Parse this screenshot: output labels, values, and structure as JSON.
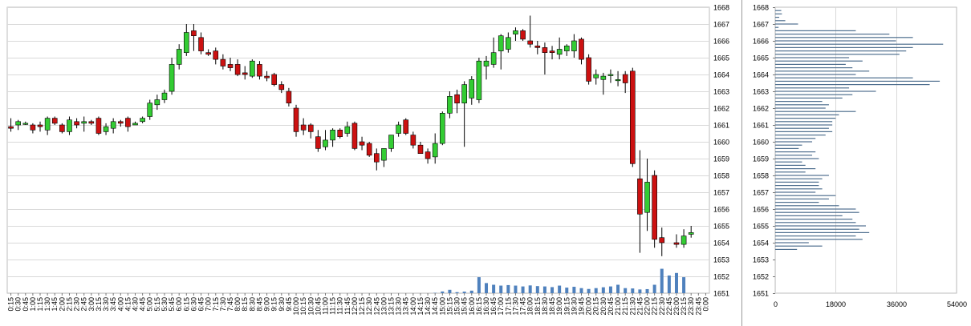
{
  "chart_data": [
    {
      "type": "candlestick",
      "ylim": [
        1651,
        1668
      ],
      "y_ticks": [
        1651,
        1652,
        1653,
        1654,
        1655,
        1656,
        1657,
        1658,
        1659,
        1660,
        1661,
        1662,
        1663,
        1664,
        1665,
        1666,
        1667,
        1668
      ],
      "x_tick_labels": [
        "0:15",
        "0:30",
        "0:45",
        "1:00",
        "1:15",
        "1:30",
        "1:45",
        "2:00",
        "2:15",
        "2:30",
        "2:45",
        "3:00",
        "3:15",
        "3:30",
        "3:45",
        "4:00",
        "4:15",
        "4:30",
        "4:45",
        "5:00",
        "5:15",
        "5:30",
        "5:45",
        "6:00",
        "6:15",
        "6:30",
        "6:45",
        "7:00",
        "7:15",
        "7:30",
        "7:45",
        "8:00",
        "8:15",
        "8:30",
        "8:45",
        "9:00",
        "9:15",
        "9:30",
        "9:45",
        "10:00",
        "10:15",
        "10:30",
        "10:45",
        "11:00",
        "11:15",
        "11:30",
        "11:45",
        "12:00",
        "12:15",
        "12:30",
        "12:45",
        "13:00",
        "13:15",
        "13:30",
        "13:45",
        "14:00",
        "14:15",
        "14:30",
        "14:45",
        "15:00",
        "15:15",
        "15:30",
        "15:45",
        "16:00",
        "16:15",
        "16:30",
        "16:45",
        "17:00",
        "17:15",
        "17:30",
        "17:45",
        "18:00",
        "18:15",
        "18:30",
        "18:45",
        "19:00",
        "19:15",
        "19:30",
        "19:45",
        "20:00",
        "20:15",
        "20:30",
        "20:45",
        "21:00",
        "21:15",
        "21:30",
        "21:45",
        "22:00",
        "22:15",
        "22:30",
        "22:45",
        "23:00",
        "23:15",
        "23:30",
        "23:45",
        "0:00"
      ],
      "candles": [
        {
          "o": 1660.9,
          "h": 1661.4,
          "l": 1660.6,
          "c": 1660.8
        },
        {
          "o": 1661.0,
          "h": 1661.3,
          "l": 1660.7,
          "c": 1661.2
        },
        {
          "o": 1661.1,
          "h": 1661.2,
          "l": 1661.0,
          "c": 1661.1
        },
        {
          "o": 1661.0,
          "h": 1661.1,
          "l": 1660.5,
          "c": 1660.7
        },
        {
          "o": 1661.0,
          "h": 1661.2,
          "l": 1660.6,
          "c": 1660.9
        },
        {
          "o": 1660.7,
          "h": 1661.5,
          "l": 1660.4,
          "c": 1661.4
        },
        {
          "o": 1661.4,
          "h": 1661.5,
          "l": 1661.0,
          "c": 1661.1
        },
        {
          "o": 1661.0,
          "h": 1661.1,
          "l": 1660.5,
          "c": 1660.6
        },
        {
          "o": 1660.6,
          "h": 1661.5,
          "l": 1660.4,
          "c": 1661.3
        },
        {
          "o": 1661.2,
          "h": 1661.4,
          "l": 1660.8,
          "c": 1661.0
        },
        {
          "o": 1661.1,
          "h": 1661.5,
          "l": 1660.6,
          "c": 1661.2
        },
        {
          "o": 1661.2,
          "h": 1661.3,
          "l": 1661.0,
          "c": 1661.1
        },
        {
          "o": 1661.4,
          "h": 1661.5,
          "l": 1660.4,
          "c": 1660.5
        },
        {
          "o": 1660.6,
          "h": 1661.1,
          "l": 1660.4,
          "c": 1660.9
        },
        {
          "o": 1660.8,
          "h": 1661.4,
          "l": 1660.5,
          "c": 1661.2
        },
        {
          "o": 1661.2,
          "h": 1661.3,
          "l": 1660.9,
          "c": 1661.1
        },
        {
          "o": 1661.4,
          "h": 1661.5,
          "l": 1660.6,
          "c": 1660.9
        },
        {
          "o": 1661.0,
          "h": 1661.2,
          "l": 1661.0,
          "c": 1661.1
        },
        {
          "o": 1661.2,
          "h": 1661.5,
          "l": 1661.1,
          "c": 1661.4
        },
        {
          "o": 1661.5,
          "h": 1662.5,
          "l": 1661.3,
          "c": 1662.3
        },
        {
          "o": 1662.2,
          "h": 1662.8,
          "l": 1661.9,
          "c": 1662.5
        },
        {
          "o": 1662.5,
          "h": 1663.1,
          "l": 1662.3,
          "c": 1662.9
        },
        {
          "o": 1663.0,
          "h": 1665.0,
          "l": 1662.8,
          "c": 1664.6
        },
        {
          "o": 1664.6,
          "h": 1665.8,
          "l": 1664.3,
          "c": 1665.5
        },
        {
          "o": 1665.3,
          "h": 1667.0,
          "l": 1665.1,
          "c": 1666.5
        },
        {
          "o": 1666.6,
          "h": 1667.0,
          "l": 1665.4,
          "c": 1666.3
        },
        {
          "o": 1666.2,
          "h": 1666.5,
          "l": 1665.2,
          "c": 1665.4
        },
        {
          "o": 1665.3,
          "h": 1665.5,
          "l": 1665.1,
          "c": 1665.2
        },
        {
          "o": 1665.4,
          "h": 1665.6,
          "l": 1664.6,
          "c": 1664.9
        },
        {
          "o": 1664.9,
          "h": 1665.2,
          "l": 1664.3,
          "c": 1664.5
        },
        {
          "o": 1664.6,
          "h": 1665.0,
          "l": 1664.2,
          "c": 1664.4
        },
        {
          "o": 1664.6,
          "h": 1664.9,
          "l": 1663.9,
          "c": 1664.0
        },
        {
          "o": 1664.1,
          "h": 1664.5,
          "l": 1663.7,
          "c": 1664.0
        },
        {
          "o": 1663.9,
          "h": 1664.9,
          "l": 1663.8,
          "c": 1664.8
        },
        {
          "o": 1664.6,
          "h": 1664.8,
          "l": 1663.7,
          "c": 1663.9
        },
        {
          "o": 1663.9,
          "h": 1664.2,
          "l": 1663.6,
          "c": 1663.8
        },
        {
          "o": 1664.0,
          "h": 1664.1,
          "l": 1663.3,
          "c": 1663.4
        },
        {
          "o": 1663.4,
          "h": 1663.6,
          "l": 1662.9,
          "c": 1663.1
        },
        {
          "o": 1663.0,
          "h": 1663.2,
          "l": 1662.1,
          "c": 1662.3
        },
        {
          "o": 1662.0,
          "h": 1662.2,
          "l": 1660.3,
          "c": 1660.6
        },
        {
          "o": 1661.0,
          "h": 1661.4,
          "l": 1660.4,
          "c": 1660.7
        },
        {
          "o": 1661.0,
          "h": 1661.1,
          "l": 1660.2,
          "c": 1660.6
        },
        {
          "o": 1660.3,
          "h": 1660.7,
          "l": 1659.4,
          "c": 1659.6
        },
        {
          "o": 1659.7,
          "h": 1660.7,
          "l": 1659.5,
          "c": 1660.1
        },
        {
          "o": 1660.1,
          "h": 1660.8,
          "l": 1659.7,
          "c": 1660.7
        },
        {
          "o": 1660.7,
          "h": 1660.8,
          "l": 1660.2,
          "c": 1660.3
        },
        {
          "o": 1660.5,
          "h": 1661.2,
          "l": 1660.3,
          "c": 1660.9
        },
        {
          "o": 1661.1,
          "h": 1661.2,
          "l": 1659.5,
          "c": 1659.6
        },
        {
          "o": 1660.0,
          "h": 1660.3,
          "l": 1659.5,
          "c": 1659.8
        },
        {
          "o": 1659.9,
          "h": 1660.0,
          "l": 1659.1,
          "c": 1659.2
        },
        {
          "o": 1659.3,
          "h": 1659.6,
          "l": 1658.3,
          "c": 1658.8
        },
        {
          "o": 1658.9,
          "h": 1659.6,
          "l": 1658.5,
          "c": 1659.6
        },
        {
          "o": 1659.6,
          "h": 1660.4,
          "l": 1659.4,
          "c": 1660.4
        },
        {
          "o": 1660.5,
          "h": 1661.2,
          "l": 1660.3,
          "c": 1661.0
        },
        {
          "o": 1661.3,
          "h": 1661.4,
          "l": 1660.4,
          "c": 1660.5
        },
        {
          "o": 1660.4,
          "h": 1660.6,
          "l": 1659.6,
          "c": 1659.8
        },
        {
          "o": 1659.8,
          "h": 1660.0,
          "l": 1659.3,
          "c": 1659.3
        },
        {
          "o": 1659.4,
          "h": 1659.6,
          "l": 1658.7,
          "c": 1659.0
        },
        {
          "o": 1659.1,
          "h": 1660.5,
          "l": 1658.7,
          "c": 1659.9
        },
        {
          "o": 1659.9,
          "h": 1661.8,
          "l": 1659.8,
          "c": 1661.7
        },
        {
          "o": 1661.7,
          "h": 1663.0,
          "l": 1661.4,
          "c": 1662.7
        },
        {
          "o": 1662.8,
          "h": 1663.1,
          "l": 1661.7,
          "c": 1662.3
        },
        {
          "o": 1662.3,
          "h": 1663.6,
          "l": 1659.7,
          "c": 1663.4
        },
        {
          "o": 1662.6,
          "h": 1663.9,
          "l": 1662.2,
          "c": 1663.7
        },
        {
          "o": 1662.5,
          "h": 1665.0,
          "l": 1662.3,
          "c": 1664.8
        },
        {
          "o": 1664.5,
          "h": 1665.1,
          "l": 1663.7,
          "c": 1664.8
        },
        {
          "o": 1664.6,
          "h": 1666.2,
          "l": 1664.4,
          "c": 1665.3
        },
        {
          "o": 1665.4,
          "h": 1666.4,
          "l": 1664.3,
          "c": 1666.3
        },
        {
          "o": 1665.5,
          "h": 1666.5,
          "l": 1665.3,
          "c": 1666.2
        },
        {
          "o": 1666.4,
          "h": 1666.8,
          "l": 1666.0,
          "c": 1666.6
        },
        {
          "o": 1666.6,
          "h": 1666.7,
          "l": 1666.0,
          "c": 1666.1
        },
        {
          "o": 1666.0,
          "h": 1667.5,
          "l": 1665.6,
          "c": 1665.8
        },
        {
          "o": 1665.7,
          "h": 1666.0,
          "l": 1665.2,
          "c": 1665.6
        },
        {
          "o": 1665.6,
          "h": 1665.9,
          "l": 1664.0,
          "c": 1665.3
        },
        {
          "o": 1665.4,
          "h": 1665.7,
          "l": 1664.9,
          "c": 1665.3
        },
        {
          "o": 1665.2,
          "h": 1666.2,
          "l": 1664.9,
          "c": 1665.5
        },
        {
          "o": 1665.4,
          "h": 1665.8,
          "l": 1665.1,
          "c": 1665.7
        },
        {
          "o": 1665.4,
          "h": 1666.4,
          "l": 1665.0,
          "c": 1666.0
        },
        {
          "o": 1666.1,
          "h": 1666.2,
          "l": 1664.6,
          "c": 1664.9
        },
        {
          "o": 1665.0,
          "h": 1665.2,
          "l": 1663.4,
          "c": 1663.6
        },
        {
          "o": 1663.8,
          "h": 1664.3,
          "l": 1663.4,
          "c": 1664.0
        },
        {
          "o": 1663.7,
          "h": 1664.1,
          "l": 1662.8,
          "c": 1663.9
        },
        {
          "o": 1664.0,
          "h": 1664.3,
          "l": 1663.5,
          "c": 1664.0
        },
        {
          "o": 1663.7,
          "h": 1664.2,
          "l": 1663.3,
          "c": 1663.7
        },
        {
          "o": 1664.0,
          "h": 1664.2,
          "l": 1662.9,
          "c": 1663.5
        },
        {
          "o": 1664.2,
          "h": 1664.4,
          "l": 1658.5,
          "c": 1658.7
        },
        {
          "o": 1657.8,
          "h": 1659.5,
          "l": 1653.4,
          "c": 1655.7
        },
        {
          "o": 1655.8,
          "h": 1659.0,
          "l": 1654.7,
          "c": 1657.6
        },
        {
          "o": 1658.0,
          "h": 1658.3,
          "l": 1653.7,
          "c": 1654.2
        },
        {
          "o": 1654.3,
          "h": 1654.9,
          "l": 1653.2,
          "c": 1654.0
        },
        null,
        {
          "o": 1654.0,
          "h": 1654.5,
          "l": 1653.7,
          "c": 1653.9
        },
        {
          "o": 1653.9,
          "h": 1654.8,
          "l": 1653.7,
          "c": 1654.4
        },
        {
          "o": 1654.5,
          "h": 1655.0,
          "l": 1654.3,
          "c": 1654.6
        },
        null,
        null
      ],
      "volume": [
        0,
        0,
        0,
        0,
        0,
        0,
        0,
        0,
        0,
        0,
        0,
        0,
        0,
        0,
        0,
        0,
        0,
        0,
        0,
        0,
        0,
        0,
        0,
        0,
        0,
        0,
        0,
        0,
        0,
        0,
        0,
        0,
        0,
        0,
        0,
        0,
        0,
        0,
        0,
        0,
        0,
        0,
        0,
        0,
        0,
        0,
        0,
        0,
        0,
        0,
        0,
        0,
        0,
        0,
        0,
        0,
        0,
        0,
        0.02,
        0.1,
        0.2,
        0.06,
        0.09,
        0.15,
        0.95,
        0.6,
        0.5,
        0.45,
        0.48,
        0.45,
        0.4,
        0.46,
        0.42,
        0.4,
        0.36,
        0.45,
        0.33,
        0.38,
        0.3,
        0.25,
        0.3,
        0.35,
        0.4,
        0.5,
        0.3,
        0.28,
        0.22,
        0.24,
        0.5,
        1.45,
        1.05,
        1.2,
        0.95,
        0,
        0,
        0,
        0,
        0,
        0,
        0
      ],
      "volume_color": "#4f81bd",
      "up_color": "#33cc33",
      "down_color": "#cc1111"
    },
    {
      "type": "bar",
      "orientation": "horizontal",
      "title": "",
      "xlim": [
        0,
        54000
      ],
      "x_ticks": [
        0,
        18000,
        36000,
        54000
      ],
      "ylim": [
        1651,
        1668
      ],
      "y_ticks": [
        1651,
        1652,
        1653,
        1654,
        1655,
        1656,
        1657,
        1658,
        1659,
        1660,
        1661,
        1662,
        1663,
        1664,
        1665,
        1666,
        1667,
        1668
      ],
      "bar_color": "#4f6f8f",
      "levels": [
        1667.8,
        1667.6,
        1667.4,
        1667.2,
        1667.0,
        1666.8,
        1666.6,
        1666.4,
        1666.2,
        1666.0,
        1665.8,
        1665.6,
        1665.4,
        1665.2,
        1665.0,
        1664.8,
        1664.6,
        1664.4,
        1664.2,
        1664.0,
        1663.8,
        1663.6,
        1663.4,
        1663.2,
        1663.0,
        1662.8,
        1662.6,
        1662.4,
        1662.2,
        1662.0,
        1661.8,
        1661.6,
        1661.4,
        1661.2,
        1661.0,
        1660.8,
        1660.6,
        1660.4,
        1660.2,
        1660.0,
        1659.8,
        1659.6,
        1659.4,
        1659.2,
        1659.0,
        1658.8,
        1658.6,
        1658.4,
        1658.2,
        1658.0,
        1657.8,
        1657.6,
        1657.4,
        1657.2,
        1657.0,
        1656.8,
        1656.6,
        1656.4,
        1656.2,
        1656.0,
        1655.8,
        1655.6,
        1655.4,
        1655.2,
        1655.0,
        1654.8,
        1654.6,
        1654.4,
        1654.2,
        1654.0,
        1653.8,
        1653.6,
        1653.4,
        1653.2
      ],
      "values": [
        1800,
        2000,
        1200,
        3000,
        6800,
        1000,
        24000,
        34000,
        41000,
        36000,
        50000,
        41000,
        39000,
        37000,
        22000,
        26000,
        21000,
        23000,
        28000,
        24000,
        41000,
        49000,
        46000,
        22000,
        30000,
        23000,
        20000,
        14000,
        16000,
        15000,
        24000,
        19000,
        18000,
        17000,
        17000,
        16000,
        17000,
        15000,
        12000,
        11000,
        8000,
        7000,
        12000,
        11000,
        13000,
        8000,
        9000,
        12000,
        9000,
        16000,
        14000,
        13000,
        13000,
        14000,
        12000,
        18000,
        16000,
        13000,
        19000,
        24000,
        25000,
        20000,
        23000,
        24000,
        27000,
        25000,
        28000,
        24000,
        26000,
        10000,
        14000,
        6500,
        0,
        0
      ]
    }
  ]
}
